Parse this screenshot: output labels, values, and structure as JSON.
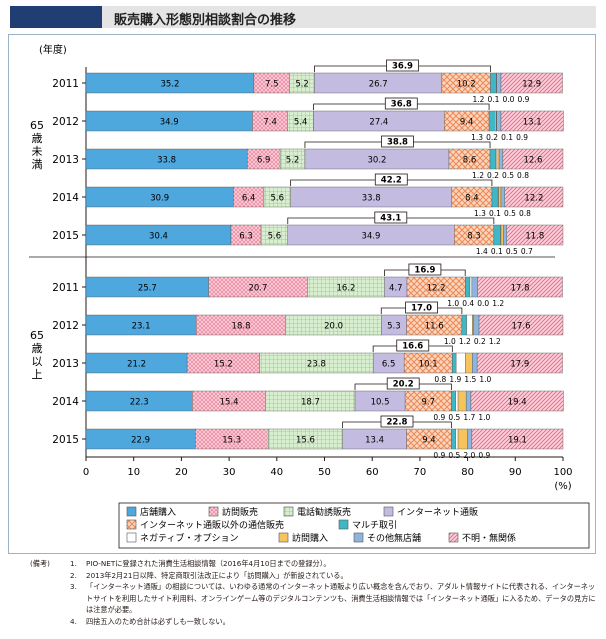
{
  "title": "販売購入形態別相談割合の推移",
  "chart_data": {
    "type": "bar",
    "orientation": "horizontal",
    "stacked": true,
    "year_axis_label": "(年度)",
    "xlim": [
      0,
      100
    ],
    "x_ticks": [
      "0",
      "10",
      "20",
      "30",
      "40",
      "50",
      "60",
      "70",
      "80",
      "90",
      "100"
    ],
    "x_unit": "(%)",
    "grid": false,
    "legend_position": "bottom",
    "series": [
      {
        "name": "店舗購入",
        "color": "#4ea7dd"
      },
      {
        "name": "訪問販売",
        "color": "#f29eb2"
      },
      {
        "name": "電話勧誘販売",
        "color": "#a8d49a"
      },
      {
        "name": "インターネット通販",
        "color": "#c3bbe0"
      },
      {
        "name": "インターネット通販以外の通信販売",
        "color": "#f5a981"
      },
      {
        "name": "マルチ取引",
        "color": "#3fb7c6"
      },
      {
        "name": "ネガティブ・オプション",
        "color": "#ffffff"
      },
      {
        "name": "訪問購入",
        "color": "#f7c35c"
      },
      {
        "name": "その他無店舗",
        "color": "#8fb5dc"
      },
      {
        "name": "不明・無関係",
        "color": "#f08a8e"
      }
    ],
    "groups": [
      {
        "label": "65歳未満",
        "rows": [
          {
            "year": "2011",
            "values": [
              35.2,
              7.5,
              5.2,
              26.7,
              10.2,
              1.2,
              0.1,
              0.0,
              0.9,
              12.9
            ],
            "bracket": "36.9",
            "small_labels": [
              "1.2",
              "0.1",
              "0.0",
              "0.9"
            ]
          },
          {
            "year": "2012",
            "values": [
              34.9,
              7.4,
              5.4,
              27.4,
              9.4,
              1.3,
              0.2,
              0.1,
              0.9,
              13.1
            ],
            "bracket": "36.8",
            "small_labels": [
              "1.3",
              "0.2",
              "0.1",
              "0.9"
            ]
          },
          {
            "year": "2013",
            "values": [
              33.8,
              6.9,
              5.2,
              30.2,
              8.6,
              1.2,
              0.2,
              0.5,
              0.8,
              12.6
            ],
            "bracket": "38.8",
            "small_labels": [
              "1.2",
              "0.2",
              "0.5",
              "0.8"
            ]
          },
          {
            "year": "2014",
            "values": [
              30.9,
              6.4,
              5.6,
              33.8,
              8.4,
              1.3,
              0.1,
              0.5,
              0.8,
              12.2
            ],
            "bracket": "42.2",
            "small_labels": [
              "1.3",
              "0.1",
              "0.5",
              "0.8"
            ]
          },
          {
            "year": "2015",
            "values": [
              30.4,
              6.3,
              5.6,
              34.9,
              8.3,
              1.4,
              0.1,
              0.5,
              0.7,
              11.8
            ],
            "bracket": "43.1",
            "small_labels": [
              "1.4",
              "0.1",
              "0.5",
              "0.7"
            ]
          }
        ]
      },
      {
        "label": "65歳以上",
        "rows": [
          {
            "year": "2011",
            "values": [
              25.7,
              20.7,
              16.2,
              4.7,
              12.2,
              1.0,
              0.4,
              0.0,
              1.2,
              17.8
            ],
            "bracket": "16.9",
            "small_labels": [
              "1.0",
              "0.4",
              "0.0",
              "1.2"
            ]
          },
          {
            "year": "2012",
            "values": [
              23.1,
              18.8,
              20.0,
              5.3,
              11.6,
              1.0,
              1.2,
              0.2,
              1.2,
              17.6
            ],
            "bracket": "17.0",
            "small_labels": [
              "1.0",
              "1.2",
              "0.2",
              "1.2"
            ]
          },
          {
            "year": "2013",
            "values": [
              21.2,
              15.2,
              23.8,
              6.5,
              10.1,
              0.8,
              1.9,
              1.5,
              1.0,
              17.9
            ],
            "bracket": "16.6",
            "small_labels": [
              "0.8",
              "1.9",
              "1.5",
              "1.0"
            ]
          },
          {
            "year": "2014",
            "values": [
              22.3,
              15.4,
              18.7,
              10.5,
              9.7,
              0.9,
              0.5,
              1.7,
              1.0,
              19.4
            ],
            "bracket": "20.2",
            "small_labels": [
              "0.9",
              "0.5",
              "1.7",
              "1.0"
            ]
          },
          {
            "year": "2015",
            "values": [
              22.9,
              15.3,
              15.6,
              13.4,
              9.4,
              0.9,
              0.5,
              2.0,
              0.9,
              19.1
            ],
            "bracket": "22.8",
            "small_labels": [
              "0.9",
              "0.5",
              "2.0",
              "0.9"
            ]
          }
        ]
      }
    ]
  },
  "notes_prefix": "(備考)",
  "notes": [
    {
      "num": "1.",
      "text": "PIO-NETに登録された消費生活相談情報（2016年4月10日までの登録分）。"
    },
    {
      "num": "2.",
      "text": "2013年2月21日以降、特定商取引法改正により「訪問購入」が新設されている。"
    },
    {
      "num": "3.",
      "text": "「インターネット通販」の相談については、いわゆる通常のインターネット通販より広い概念を含んでおり、アダルト情報サイトに代表される、インターネットサイトを利用したサイト利用料、オンラインゲーム等のデジタルコンテンツも、消費生活相談情報では「インターネット通販」に入るため、データの見方には注意が必要。"
    },
    {
      "num": "4.",
      "text": "四捨五入のため合計は必ずしも一致しない。"
    }
  ]
}
